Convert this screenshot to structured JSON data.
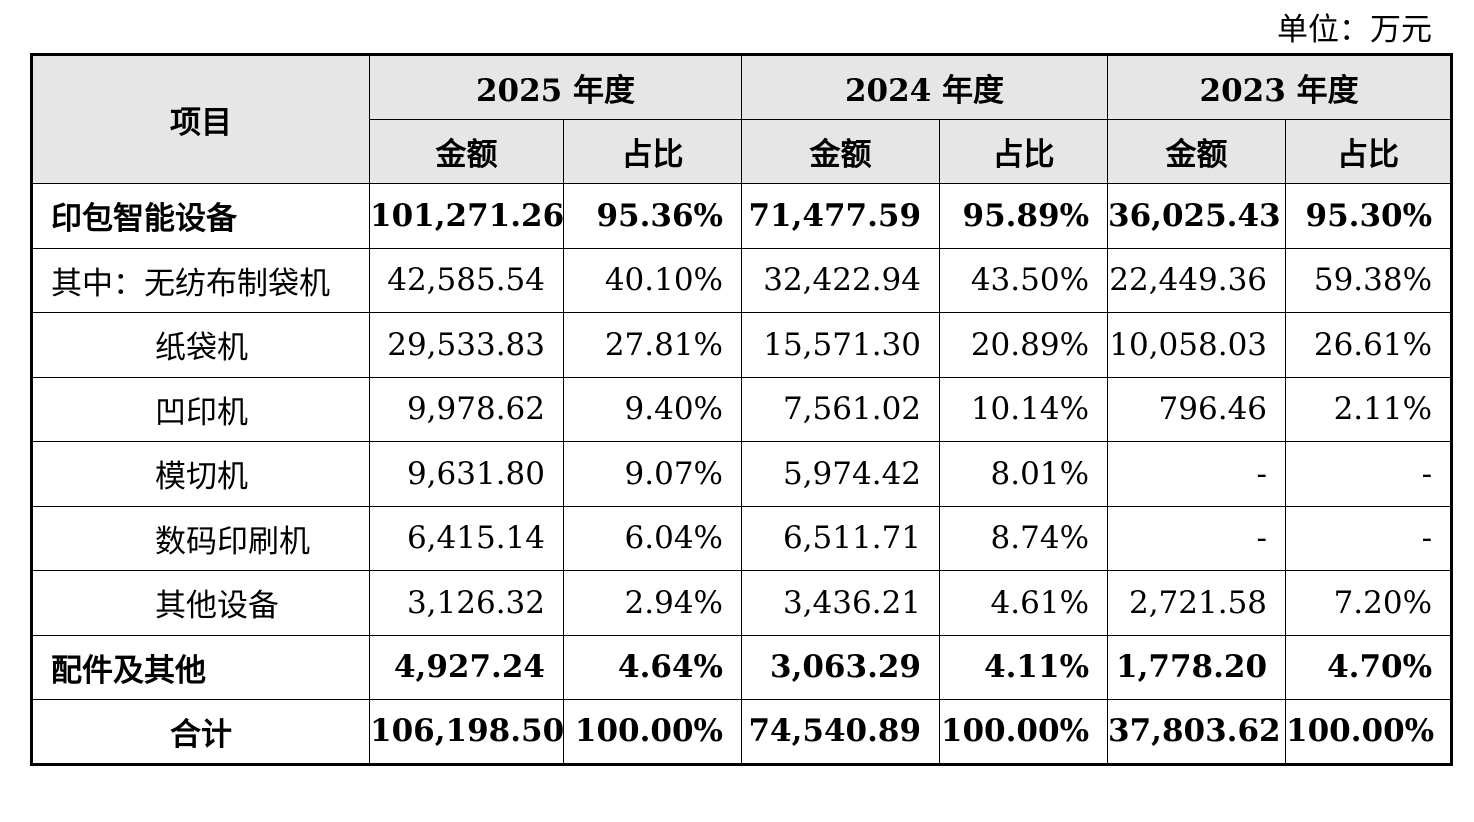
{
  "unit_label": "单位：万元",
  "header": {
    "item": "项目",
    "years": [
      "2025 年度",
      "2024 年度",
      "2023 年度"
    ],
    "amount": "金额",
    "ratio": "占比"
  },
  "rows": [
    {
      "label": "印包智能设备",
      "values": [
        "101,271.26",
        "95.36%",
        "71,477.59",
        "95.89%",
        "36,025.43",
        "95.30%"
      ]
    },
    {
      "label": "其中：无纺布制袋机",
      "values": [
        "42,585.54",
        "40.10%",
        "32,422.94",
        "43.50%",
        "22,449.36",
        "59.38%"
      ]
    },
    {
      "label": "纸袋机",
      "values": [
        "29,533.83",
        "27.81%",
        "15,571.30",
        "20.89%",
        "10,058.03",
        "26.61%"
      ]
    },
    {
      "label": "凹印机",
      "values": [
        "9,978.62",
        "9.40%",
        "7,561.02",
        "10.14%",
        "796.46",
        "2.11%"
      ]
    },
    {
      "label": "模切机",
      "values": [
        "9,631.80",
        "9.07%",
        "5,974.42",
        "8.01%",
        "-",
        "-"
      ]
    },
    {
      "label": "数码印刷机",
      "values": [
        "6,415.14",
        "6.04%",
        "6,511.71",
        "8.74%",
        "-",
        "-"
      ]
    },
    {
      "label": "其他设备",
      "values": [
        "3,126.32",
        "2.94%",
        "3,436.21",
        "4.61%",
        "2,721.58",
        "7.20%"
      ]
    },
    {
      "label": "配件及其他",
      "values": [
        "4,927.24",
        "4.64%",
        "3,063.29",
        "4.11%",
        "1,778.20",
        "4.70%"
      ]
    },
    {
      "label": "合计",
      "values": [
        "106,198.50",
        "100.00%",
        "74,540.89",
        "100.00%",
        "37,803.62",
        "100.00%"
      ]
    }
  ]
}
